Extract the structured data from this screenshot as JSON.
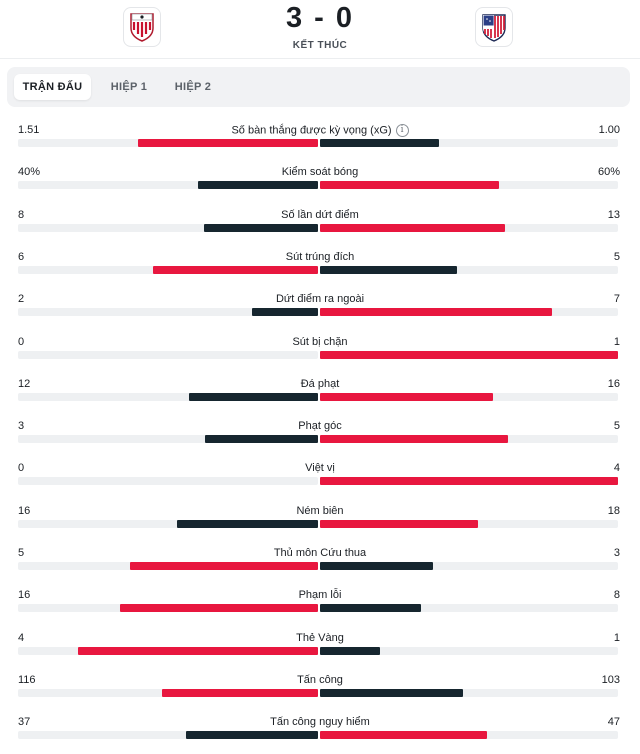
{
  "match": {
    "score": "3 - 0",
    "status": "KẾT THÚC",
    "home_crest": "athletic-bilbao-crest",
    "away_crest": "atletico-madrid-crest"
  },
  "tabs": [
    {
      "label": "TRẬN ĐẤU",
      "active": true
    },
    {
      "label": "HIỆP 1",
      "active": false
    },
    {
      "label": "HIỆP 2",
      "active": false
    }
  ],
  "colors": {
    "win": "#e8173f",
    "lose": "#16262f",
    "track": "#eef0f2"
  },
  "stats": [
    {
      "label": "Số bàn thắng được kỳ vọng (xG)",
      "home": "1.51",
      "away": "1.00",
      "home_share": 0.6,
      "away_share": 0.4,
      "home_color": "win",
      "away_color": "lose",
      "info": "i"
    },
    {
      "label": "Kiểm soát bóng",
      "home": "40%",
      "away": "60%",
      "home_share": 0.4,
      "away_share": 0.6,
      "home_color": "lose",
      "away_color": "win"
    },
    {
      "label": "Số lần dứt điểm",
      "home": "8",
      "away": "13",
      "home_share": 0.38,
      "away_share": 0.62,
      "home_color": "lose",
      "away_color": "win"
    },
    {
      "label": "Sút trúng đích",
      "home": "6",
      "away": "5",
      "home_share": 0.55,
      "away_share": 0.46,
      "home_color": "win",
      "away_color": "lose"
    },
    {
      "label": "Dứt điểm ra ngoài",
      "home": "2",
      "away": "7",
      "home_share": 0.22,
      "away_share": 0.78,
      "home_color": "lose",
      "away_color": "win"
    },
    {
      "label": "Sút bị chặn",
      "home": "0",
      "away": "1",
      "home_share": 0.0,
      "away_share": 1.0,
      "home_color": "lose",
      "away_color": "win"
    },
    {
      "label": "Đá phạt",
      "home": "12",
      "away": "16",
      "home_share": 0.43,
      "away_share": 0.58,
      "home_color": "lose",
      "away_color": "win"
    },
    {
      "label": "Phạt góc",
      "home": "3",
      "away": "5",
      "home_share": 0.375,
      "away_share": 0.63,
      "home_color": "lose",
      "away_color": "win"
    },
    {
      "label": "Việt vị",
      "home": "0",
      "away": "4",
      "home_share": 0.0,
      "away_share": 1.0,
      "home_color": "lose",
      "away_color": "win"
    },
    {
      "label": "Ném biên",
      "home": "16",
      "away": "18",
      "home_share": 0.47,
      "away_share": 0.53,
      "home_color": "lose",
      "away_color": "win"
    },
    {
      "label": "Thủ môn Cứu thua",
      "home": "5",
      "away": "3",
      "home_share": 0.625,
      "away_share": 0.38,
      "home_color": "win",
      "away_color": "lose"
    },
    {
      "label": "Phạm lỗi",
      "home": "16",
      "away": "8",
      "home_share": 0.66,
      "away_share": 0.34,
      "home_color": "win",
      "away_color": "lose"
    },
    {
      "label": "Thẻ Vàng",
      "home": "4",
      "away": "1",
      "home_share": 0.8,
      "away_share": 0.2,
      "home_color": "win",
      "away_color": "lose"
    },
    {
      "label": "Tấn công",
      "home": "116",
      "away": "103",
      "home_share": 0.52,
      "away_share": 0.48,
      "home_color": "win",
      "away_color": "lose"
    },
    {
      "label": "Tấn công nguy hiểm",
      "home": "37",
      "away": "47",
      "home_share": 0.44,
      "away_share": 0.56,
      "home_color": "lose",
      "away_color": "win"
    }
  ]
}
